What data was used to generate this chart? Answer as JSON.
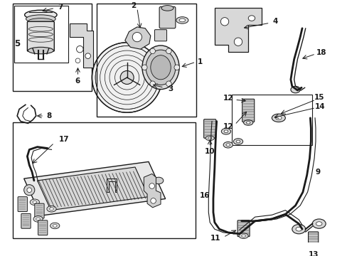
{
  "bg_color": "#ffffff",
  "lc": "#1a1a1a",
  "figsize": [
    4.89,
    3.6
  ],
  "dpi": 100,
  "xlim": [
    0,
    489
  ],
  "ylim": [
    0,
    360
  ]
}
